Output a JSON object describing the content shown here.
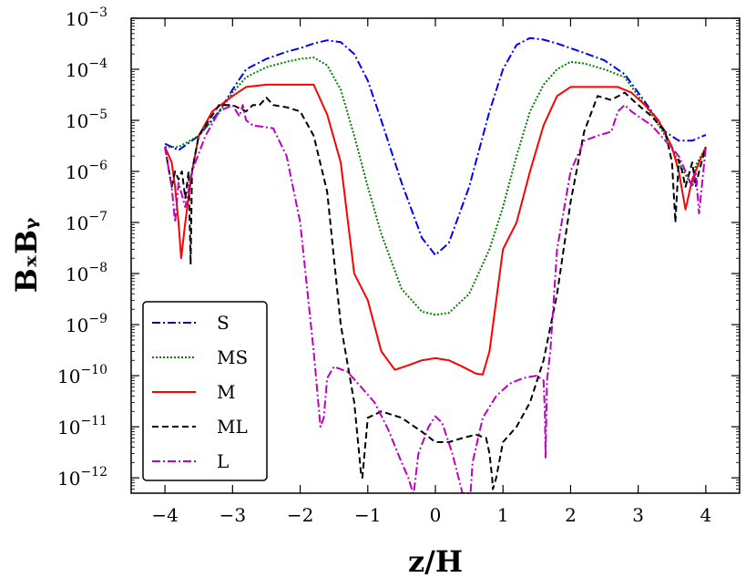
{
  "chart_data": {
    "type": "line",
    "xlabel": "z/H",
    "ylabel": "BₓBᵧ",
    "yscale": "log",
    "xlim": [
      -4.5,
      4.5
    ],
    "ylim": [
      5e-13,
      0.001
    ],
    "x_ticks": [
      -4,
      -3,
      -2,
      -1,
      0,
      1,
      2,
      3,
      4
    ],
    "x_tick_labels": [
      "−4",
      "−3",
      "−2",
      "−1",
      "0",
      "1",
      "2",
      "3",
      "4"
    ],
    "y_ticks": [
      1e-12,
      1e-11,
      1e-10,
      1e-09,
      1e-08,
      1e-07,
      1e-06,
      1e-05,
      0.0001,
      0.001
    ],
    "y_tick_mantissa": "10",
    "y_tick_exponents": [
      "−12",
      "−11",
      "−10",
      "−9",
      "−8",
      "−7",
      "−6",
      "−5",
      "−4",
      "−3"
    ],
    "legend_position": "lower-left",
    "series": [
      {
        "name": "S",
        "color": "#0000ff",
        "dash": "dashdot",
        "x": [
          -4.0,
          -3.8,
          -3.5,
          -3.2,
          -3.0,
          -2.8,
          -2.5,
          -2.2,
          -2.0,
          -1.8,
          -1.6,
          -1.4,
          -1.2,
          -1.0,
          -0.8,
          -0.5,
          -0.2,
          0.0,
          0.2,
          0.5,
          0.8,
          1.0,
          1.2,
          1.4,
          1.6,
          1.8,
          2.0,
          2.2,
          2.5,
          2.8,
          3.0,
          3.2,
          3.4,
          3.6,
          3.8,
          4.0
        ],
        "y": [
          3.5e-06,
          2.6e-06,
          5e-06,
          1.5e-05,
          4e-05,
          0.0001,
          0.00016,
          0.00022,
          0.00026,
          0.00032,
          0.00037,
          0.00034,
          0.0002,
          6e-05,
          1e-05,
          6e-07,
          5e-08,
          2.3e-08,
          4e-08,
          5e-07,
          1.5e-05,
          0.0001,
          0.0003,
          0.00041,
          0.00038,
          0.00032,
          0.00026,
          0.00021,
          0.00015,
          8e-05,
          3.5e-05,
          1.5e-05,
          6e-06,
          4e-06,
          4e-06,
          5.2e-06
        ]
      },
      {
        "name": "MS",
        "color": "#008000",
        "dash": "dotted",
        "x": [
          -4.0,
          -3.8,
          -3.5,
          -3.2,
          -3.0,
          -2.8,
          -2.5,
          -2.2,
          -2.0,
          -1.8,
          -1.6,
          -1.4,
          -1.2,
          -1.0,
          -0.8,
          -0.5,
          -0.2,
          0.0,
          0.2,
          0.5,
          0.8,
          1.0,
          1.2,
          1.4,
          1.6,
          1.8,
          2.0,
          2.2,
          2.5,
          2.8,
          3.0,
          3.2,
          3.4,
          3.6,
          3.8,
          3.85,
          4.0
        ],
        "y": [
          3e-06,
          3e-06,
          5e-06,
          1.4e-05,
          3.5e-05,
          7e-05,
          0.00011,
          0.00014,
          0.00016,
          0.00017,
          0.00012,
          4e-05,
          5e-06,
          5e-07,
          6e-08,
          5e-09,
          1.8e-09,
          1.55e-09,
          1.7e-09,
          4e-09,
          3e-08,
          2e-07,
          2e-06,
          1.5e-05,
          5e-05,
          0.0001,
          0.00014,
          0.00013,
          0.0001,
          7e-05,
          3e-05,
          1.3e-05,
          5e-06,
          1.5e-06,
          5e-07,
          1.3e-06,
          3e-06
        ]
      },
      {
        "name": "M",
        "color": "#ff0000",
        "dash": "solid",
        "x": [
          -4.0,
          -3.9,
          -3.85,
          -3.8,
          -3.76,
          -3.7,
          -3.6,
          -3.5,
          -3.3,
          -3.0,
          -2.8,
          -2.5,
          -2.2,
          -1.8,
          -1.6,
          -1.4,
          -1.2,
          -1.0,
          -0.8,
          -0.6,
          -0.4,
          -0.2,
          0.0,
          0.2,
          0.4,
          0.6,
          0.7,
          0.8,
          1.0,
          1.2,
          1.4,
          1.6,
          1.8,
          2.0,
          2.4,
          2.7,
          2.9,
          3.1,
          3.3,
          3.5,
          3.6,
          3.7,
          3.8,
          3.9,
          4.0
        ],
        "y": [
          3e-06,
          1.5e-06,
          5e-07,
          1e-07,
          2e-08,
          1e-07,
          1e-06,
          5e-06,
          1.5e-05,
          3e-05,
          4.5e-05,
          5e-05,
          5e-05,
          5e-05,
          1.3e-05,
          1.5e-06,
          1e-08,
          3e-09,
          3e-10,
          1.3e-10,
          1.6e-10,
          2e-10,
          2.2e-10,
          2e-10,
          1.5e-10,
          1.1e-10,
          1.05e-10,
          3e-10,
          3e-08,
          1e-07,
          1e-06,
          8e-06,
          3e-05,
          4.5e-05,
          4.5e-05,
          4.5e-05,
          3.5e-05,
          2e-05,
          1e-05,
          3e-06,
          1e-06,
          1.8e-07,
          7e-07,
          1.5e-06,
          3e-06
        ]
      },
      {
        "name": "ML",
        "color": "#000000",
        "dash": "dashed",
        "x": [
          -4.0,
          -3.9,
          -3.85,
          -3.8,
          -3.75,
          -3.7,
          -3.65,
          -3.62,
          -3.6,
          -3.5,
          -3.2,
          -3.0,
          -2.8,
          -2.7,
          -2.6,
          -2.5,
          -2.4,
          -2.2,
          -2.0,
          -1.8,
          -1.6,
          -1.4,
          -1.2,
          -1.1,
          -1.08,
          -1.0,
          -0.8,
          -0.5,
          -0.2,
          0.0,
          0.2,
          0.4,
          0.6,
          0.75,
          0.8,
          0.84,
          0.85,
          0.9,
          1.0,
          1.2,
          1.4,
          1.6,
          1.8,
          2.0,
          2.2,
          2.4,
          2.6,
          2.8,
          3.0,
          3.2,
          3.4,
          3.5,
          3.55,
          3.6,
          3.65,
          3.7,
          3.8,
          3.85,
          3.9,
          4.0
        ],
        "y": [
          3e-06,
          5e-07,
          1e-06,
          7e-07,
          1e-06,
          3e-07,
          1e-06,
          1.5e-08,
          1e-06,
          5e-06,
          2e-05,
          2e-05,
          1.5e-05,
          2e-05,
          2e-05,
          2.8e-05,
          2e-05,
          1.8e-05,
          1.5e-05,
          5e-06,
          4e-07,
          1e-09,
          3e-11,
          1.2e-12,
          1e-12,
          1.5e-11,
          2e-11,
          1.5e-11,
          8e-12,
          5e-12,
          5e-12,
          6e-12,
          7e-12,
          6e-12,
          3e-12,
          1e-12,
          6e-13,
          1e-12,
          5e-12,
          1e-11,
          3e-11,
          2e-10,
          4e-09,
          2.5e-07,
          6e-06,
          3e-05,
          2.5e-05,
          3.5e-05,
          2e-05,
          1.2e-05,
          6e-06,
          1.5e-06,
          1e-07,
          1.7e-06,
          1e-06,
          5e-07,
          1.5e-06,
          5e-07,
          1e-06,
          3e-06
        ]
      },
      {
        "name": "L",
        "color": "#bf00bf",
        "dash": "dashdot",
        "x": [
          -4.0,
          -3.9,
          -3.85,
          -3.8,
          -3.7,
          -3.6,
          -3.4,
          -3.2,
          -3.0,
          -2.9,
          -2.85,
          -2.8,
          -2.7,
          -2.4,
          -2.2,
          -2.0,
          -1.8,
          -1.7,
          -1.65,
          -1.6,
          -1.5,
          -1.3,
          -1.1,
          -0.9,
          -0.7,
          -0.5,
          -0.4,
          -0.33,
          -0.32,
          -0.25,
          -0.1,
          0.0,
          0.1,
          0.25,
          0.4,
          0.5,
          0.52,
          0.55,
          0.7,
          0.9,
          1.1,
          1.3,
          1.5,
          1.6,
          1.62,
          1.63,
          1.65,
          1.7,
          1.8,
          2.0,
          2.2,
          2.4,
          2.6,
          2.7,
          2.8,
          2.9,
          3.0,
          3.2,
          3.4,
          3.6,
          3.7,
          3.8,
          3.85,
          3.9,
          4.0
        ],
        "y": [
          3e-06,
          5e-07,
          1e-07,
          6e-07,
          2e-07,
          1e-06,
          5e-06,
          1.5e-05,
          2e-05,
          1.2e-05,
          2e-05,
          1e-05,
          8e-06,
          7e-06,
          2e-06,
          1e-07,
          3e-10,
          1e-11,
          1.5e-11,
          9e-11,
          1.5e-10,
          1.2e-10,
          6e-11,
          3e-11,
          9e-12,
          2e-12,
          1e-12,
          5e-13,
          5e-13,
          3e-12,
          1e-11,
          1.6e-11,
          1.2e-11,
          3e-12,
          5e-13,
          5e-13,
          5e-13,
          2e-12,
          1.5e-11,
          4e-11,
          7e-11,
          9e-11,
          1e-10,
          8e-11,
          2e-11,
          2.5e-12,
          8e-11,
          3e-10,
          3e-08,
          1e-06,
          4e-06,
          5e-06,
          6e-06,
          1.5e-05,
          2e-05,
          1.5e-05,
          1.2e-05,
          8e-06,
          4e-06,
          2e-06,
          1e-06,
          5e-07,
          1e-06,
          1.5e-07,
          3e-06
        ]
      }
    ]
  }
}
